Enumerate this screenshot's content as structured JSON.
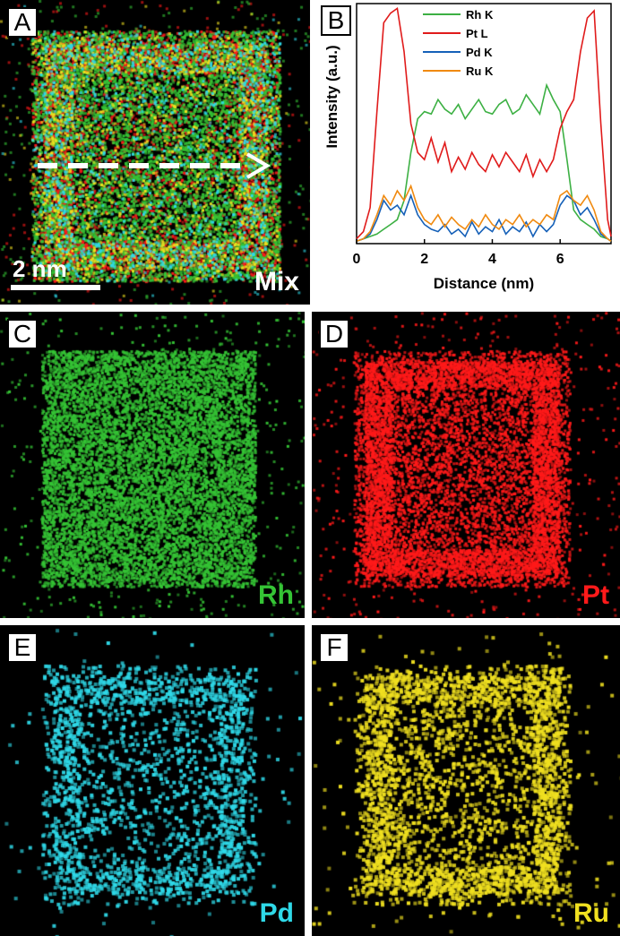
{
  "panels": {
    "A": {
      "label": "A",
      "element": "Mix",
      "scalebar": "2 nm"
    },
    "B": {
      "label": "B"
    },
    "C": {
      "label": "C",
      "element": "Rh",
      "color": "#35c435"
    },
    "D": {
      "label": "D",
      "element": "Pt",
      "color": "#ff1a1a"
    },
    "E": {
      "label": "E",
      "element": "Pd",
      "color": "#2fd9e8"
    },
    "F": {
      "label": "F",
      "element": "Ru",
      "color": "#f0e020"
    }
  },
  "mix_label_color": "#ffffff",
  "chart_data": {
    "type": "line",
    "xlabel": "Distance (nm)",
    "ylabel": "Intensity (a.u.)",
    "xlim": [
      0,
      7.5
    ],
    "ylim": [
      0,
      1.0
    ],
    "xticks": [
      "0",
      "2",
      "4",
      "6"
    ],
    "legend_position": "top-center",
    "series": [
      {
        "name": "Rh K",
        "color": "#3cb043",
        "x": [
          0,
          0.2,
          0.4,
          0.6,
          0.8,
          1.0,
          1.2,
          1.4,
          1.6,
          1.8,
          2.0,
          2.2,
          2.4,
          2.6,
          2.8,
          3.0,
          3.2,
          3.4,
          3.6,
          3.8,
          4.0,
          4.2,
          4.4,
          4.6,
          4.8,
          5.0,
          5.2,
          5.4,
          5.6,
          5.8,
          6.0,
          6.2,
          6.4,
          6.6,
          6.8,
          7.0,
          7.2,
          7.4,
          7.5
        ],
        "y": [
          0.01,
          0.02,
          0.03,
          0.04,
          0.06,
          0.08,
          0.1,
          0.18,
          0.38,
          0.52,
          0.55,
          0.54,
          0.6,
          0.56,
          0.54,
          0.58,
          0.52,
          0.56,
          0.6,
          0.55,
          0.54,
          0.58,
          0.6,
          0.54,
          0.56,
          0.62,
          0.58,
          0.54,
          0.66,
          0.6,
          0.55,
          0.35,
          0.14,
          0.1,
          0.08,
          0.06,
          0.03,
          0.02,
          0.01
        ]
      },
      {
        "name": "Pt  L",
        "color": "#e01b1b",
        "x": [
          0,
          0.2,
          0.4,
          0.6,
          0.8,
          1.0,
          1.2,
          1.4,
          1.6,
          1.8,
          2.0,
          2.2,
          2.4,
          2.6,
          2.8,
          3.0,
          3.2,
          3.4,
          3.6,
          3.8,
          4.0,
          4.2,
          4.4,
          4.6,
          4.8,
          5.0,
          5.2,
          5.4,
          5.6,
          5.8,
          6.0,
          6.2,
          6.4,
          6.6,
          6.8,
          7.0,
          7.2,
          7.4,
          7.5
        ],
        "y": [
          0.02,
          0.05,
          0.15,
          0.55,
          0.92,
          0.96,
          0.98,
          0.8,
          0.5,
          0.38,
          0.35,
          0.44,
          0.34,
          0.42,
          0.3,
          0.36,
          0.31,
          0.38,
          0.33,
          0.3,
          0.37,
          0.32,
          0.38,
          0.34,
          0.3,
          0.37,
          0.28,
          0.35,
          0.3,
          0.35,
          0.48,
          0.55,
          0.6,
          0.8,
          0.94,
          0.97,
          0.5,
          0.1,
          0.03
        ]
      },
      {
        "name": "Pd K",
        "color": "#1560b8",
        "x": [
          0,
          0.2,
          0.4,
          0.6,
          0.8,
          1.0,
          1.2,
          1.4,
          1.6,
          1.8,
          2.0,
          2.2,
          2.4,
          2.6,
          2.8,
          3.0,
          3.2,
          3.4,
          3.6,
          3.8,
          4.0,
          4.2,
          4.4,
          4.6,
          4.8,
          5.0,
          5.2,
          5.4,
          5.6,
          5.8,
          6.0,
          6.2,
          6.4,
          6.6,
          6.8,
          7.0,
          7.2,
          7.4,
          7.5
        ],
        "y": [
          0.01,
          0.02,
          0.04,
          0.1,
          0.18,
          0.14,
          0.16,
          0.12,
          0.2,
          0.12,
          0.08,
          0.06,
          0.05,
          0.08,
          0.04,
          0.06,
          0.03,
          0.09,
          0.04,
          0.07,
          0.05,
          0.1,
          0.04,
          0.07,
          0.05,
          0.09,
          0.03,
          0.08,
          0.05,
          0.08,
          0.16,
          0.2,
          0.18,
          0.12,
          0.15,
          0.1,
          0.04,
          0.02,
          0.01
        ]
      },
      {
        "name": "Ru K",
        "color": "#f08a10",
        "x": [
          0,
          0.2,
          0.4,
          0.6,
          0.8,
          1.0,
          1.2,
          1.4,
          1.6,
          1.8,
          2.0,
          2.2,
          2.4,
          2.6,
          2.8,
          3.0,
          3.2,
          3.4,
          3.6,
          3.8,
          4.0,
          4.2,
          4.4,
          4.6,
          4.8,
          5.0,
          5.2,
          5.4,
          5.6,
          5.8,
          6.0,
          6.2,
          6.4,
          6.6,
          6.8,
          7.0,
          7.2,
          7.4,
          7.5
        ],
        "y": [
          0.01,
          0.02,
          0.05,
          0.12,
          0.2,
          0.16,
          0.22,
          0.18,
          0.24,
          0.15,
          0.1,
          0.08,
          0.12,
          0.07,
          0.11,
          0.08,
          0.06,
          0.1,
          0.07,
          0.12,
          0.08,
          0.06,
          0.1,
          0.08,
          0.12,
          0.07,
          0.1,
          0.08,
          0.12,
          0.1,
          0.2,
          0.22,
          0.18,
          0.16,
          0.2,
          0.14,
          0.05,
          0.02,
          0.01
        ]
      }
    ]
  }
}
